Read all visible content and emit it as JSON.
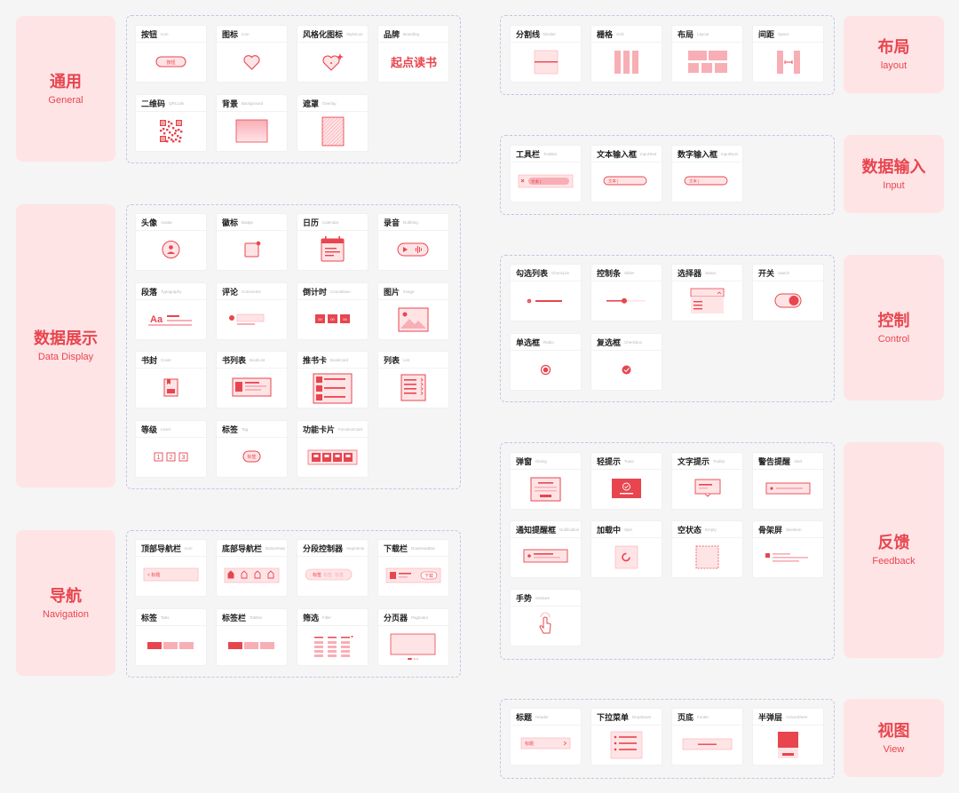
{
  "colors": {
    "accent": "#e8454e",
    "tint": "#ffe4e6",
    "light": "#f8aeb5"
  },
  "categories": [
    {
      "id": "general",
      "zh": "通用",
      "en": "General",
      "cards": [
        {
          "zh": "按钮",
          "en": "Icon",
          "icon": "button-icon",
          "inner": "按钮"
        },
        {
          "zh": "图标",
          "en": "Icon",
          "icon": "heart-icon"
        },
        {
          "zh": "风格化图标",
          "en": "StyleIcon",
          "icon": "sparkle-heart-icon"
        },
        {
          "zh": "品牌",
          "en": "Branding",
          "icon": "brand-text",
          "inner": "起点读书"
        },
        {
          "zh": "二维码",
          "en": "QRCode",
          "icon": "qrcode-icon"
        },
        {
          "zh": "背景",
          "en": "Background",
          "icon": "background-icon"
        },
        {
          "zh": "遮罩",
          "en": "Overlay",
          "icon": "overlay-icon"
        }
      ]
    },
    {
      "id": "display",
      "zh": "数据展示",
      "en": "Data Display",
      "cards": [
        {
          "zh": "头像",
          "en": "Avatar",
          "icon": "avatar-icon"
        },
        {
          "zh": "徽标",
          "en": "Badge",
          "icon": "badge-icon"
        },
        {
          "zh": "日历",
          "en": "Calendar",
          "icon": "calendar-icon"
        },
        {
          "zh": "录音",
          "en": "Dubbing",
          "icon": "audio-icon"
        },
        {
          "zh": "段落",
          "en": "Typography",
          "icon": "typography-icon",
          "inner": "Aa"
        },
        {
          "zh": "评论",
          "en": "Comments",
          "icon": "comment-icon"
        },
        {
          "zh": "倒计时",
          "en": "Countdown",
          "icon": "countdown-icon"
        },
        {
          "zh": "图片",
          "en": "Image",
          "icon": "image-icon"
        },
        {
          "zh": "书封",
          "en": "Cover",
          "icon": "book-cover-icon"
        },
        {
          "zh": "书列表",
          "en": "BookList",
          "icon": "book-list-icon"
        },
        {
          "zh": "推书卡",
          "en": "BookCard",
          "icon": "book-card-icon"
        },
        {
          "zh": "列表",
          "en": "List",
          "icon": "list-icon"
        },
        {
          "zh": "等级",
          "en": "Level",
          "icon": "level-icon"
        },
        {
          "zh": "标签",
          "en": "Tag",
          "icon": "tag-icon",
          "inner": "标签"
        },
        {
          "zh": "功能卡片",
          "en": "FunctionCard",
          "icon": "function-card-icon"
        }
      ]
    },
    {
      "id": "nav",
      "zh": "导航",
      "en": "Navigation",
      "cards": [
        {
          "zh": "顶部导航栏",
          "en": "Icon",
          "icon": "top-nav-icon",
          "inner": "< 标题"
        },
        {
          "zh": "底部导航栏",
          "en": "BottomNav",
          "icon": "bottom-nav-icon"
        },
        {
          "zh": "分段控制器",
          "en": "Segments",
          "icon": "segments-icon",
          "inner": "标签"
        },
        {
          "zh": "下载栏",
          "en": "DownloadBar",
          "icon": "download-bar-icon",
          "inner": "下载"
        },
        {
          "zh": "标签",
          "en": "Tabs",
          "icon": "tabs-icon"
        },
        {
          "zh": "标签栏",
          "en": "TabBar",
          "icon": "tab-bar-icon"
        },
        {
          "zh": "筛选",
          "en": "Filter",
          "icon": "filter-icon"
        },
        {
          "zh": "分页器",
          "en": "Paginator",
          "icon": "paginator-icon"
        }
      ]
    },
    {
      "id": "layout",
      "zh": "布局",
      "en": "layout",
      "cards": [
        {
          "zh": "分割线",
          "en": "Divider",
          "icon": "divider-icon"
        },
        {
          "zh": "栅格",
          "en": "Grid",
          "icon": "grid-icon"
        },
        {
          "zh": "布局",
          "en": "Layout",
          "icon": "layout-icon"
        },
        {
          "zh": "间距",
          "en": "Space",
          "icon": "space-icon"
        }
      ]
    },
    {
      "id": "input",
      "zh": "数据输入",
      "en": "Input",
      "cards": [
        {
          "zh": "工具栏",
          "en": "ToolBar",
          "icon": "toolbar-icon",
          "inner": "文本"
        },
        {
          "zh": "文本输入框",
          "en": "InputText",
          "icon": "text-input-icon",
          "inner": "文本"
        },
        {
          "zh": "数字输入框",
          "en": "InputNum",
          "icon": "number-input-icon",
          "inner": "文本"
        }
      ]
    },
    {
      "id": "control",
      "zh": "控制",
      "en": "Control",
      "cards": [
        {
          "zh": "勾选列表",
          "en": "CheckList",
          "icon": "checklist-icon"
        },
        {
          "zh": "控制条",
          "en": "Slider",
          "icon": "slider-icon"
        },
        {
          "zh": "选择器",
          "en": "Select",
          "icon": "select-icon"
        },
        {
          "zh": "开关",
          "en": "Switch",
          "icon": "switch-icon"
        },
        {
          "zh": "单选框",
          "en": "Radio",
          "icon": "radio-icon"
        },
        {
          "zh": "复选框",
          "en": "Checkbox",
          "icon": "checkbox-icon"
        }
      ]
    },
    {
      "id": "feedback",
      "zh": "反馈",
      "en": "Feedback",
      "cards": [
        {
          "zh": "弹窗",
          "en": "Dialog",
          "icon": "dialog-icon"
        },
        {
          "zh": "轻提示",
          "en": "Toast",
          "icon": "toast-icon"
        },
        {
          "zh": "文字提示",
          "en": "Tooltip",
          "icon": "tooltip-icon"
        },
        {
          "zh": "警告提醒",
          "en": "Alert",
          "icon": "alert-icon"
        },
        {
          "zh": "通知提醒框",
          "en": "Notification",
          "icon": "notification-icon"
        },
        {
          "zh": "加载中",
          "en": "Spin",
          "icon": "spin-icon"
        },
        {
          "zh": "空状态",
          "en": "Empty",
          "icon": "empty-icon"
        },
        {
          "zh": "骨架屏",
          "en": "Skeleton",
          "icon": "skeleton-icon"
        },
        {
          "zh": "手势",
          "en": "Gesture",
          "icon": "gesture-icon"
        }
      ]
    },
    {
      "id": "view",
      "zh": "视图",
      "en": "View",
      "cards": [
        {
          "zh": "标题",
          "en": "Header",
          "icon": "header-icon",
          "inner": "标题"
        },
        {
          "zh": "下拉菜单",
          "en": "DropDown",
          "icon": "dropdown-icon"
        },
        {
          "zh": "页底",
          "en": "Footer",
          "icon": "footer-icon"
        },
        {
          "zh": "半弹层",
          "en": "ActionSheet",
          "icon": "action-sheet-icon"
        }
      ]
    }
  ]
}
